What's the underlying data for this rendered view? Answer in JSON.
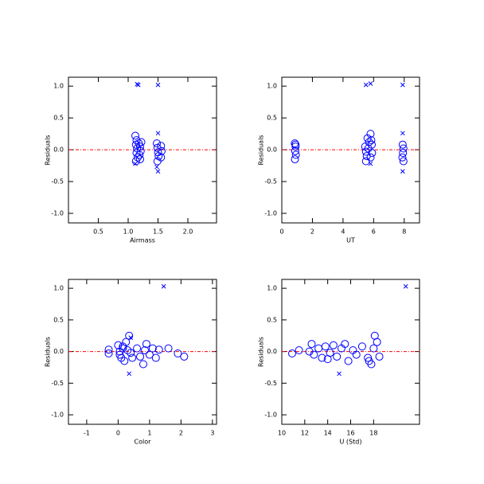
{
  "chart_data": [
    {
      "type": "scatter",
      "xlabel": "Airmass",
      "ylabel": "Residuals",
      "xlim": [
        0,
        2.48
      ],
      "ylim": [
        -1.15,
        1.14
      ],
      "xticks": [
        0.5,
        {
          "value": 1,
          "label": "1.0"
        },
        1.5,
        {
          "value": 2,
          "label": "2.0"
        }
      ],
      "yticks": [
        {
          "value": 1,
          "label": "1.0"
        },
        0.5,
        {
          "value": 0,
          "label": "0.0"
        },
        -0.5,
        {
          "value": -1,
          "label": "-1.0"
        }
      ],
      "hline": 0,
      "hline_color": "#ff0000",
      "series": [
        {
          "marker": "circle",
          "color": "#0000ff",
          "x": [
            1.12,
            1.14,
            1.13,
            1.15,
            1.14,
            1.16,
            1.13,
            1.18,
            1.2,
            1.21,
            1.19,
            1.22,
            1.2,
            1.48,
            1.49,
            1.5,
            1.51,
            1.49,
            1.55,
            1.56,
            1.55
          ],
          "y": [
            0.22,
            0.15,
            0.08,
            0.02,
            -0.05,
            -0.12,
            -0.18,
            0.1,
            0.05,
            -0.02,
            -0.08,
            0.12,
            -0.15,
            0.1,
            0.03,
            -0.04,
            -0.1,
            -0.18,
            0.06,
            -0.02,
            -0.12
          ]
        },
        {
          "marker": "x",
          "color": "#0000ff",
          "x": [
            1.15,
            1.17,
            1.5,
            1.5,
            1.5,
            1.48,
            1.12
          ],
          "y": [
            1.03,
            1.02,
            1.02,
            0.26,
            -0.34,
            -0.27,
            -0.22
          ]
        }
      ]
    },
    {
      "type": "scatter",
      "xlabel": "UT",
      "ylabel": "Residuals",
      "xlim": [
        0,
        9
      ],
      "ylim": [
        -1.15,
        1.14
      ],
      "xticks": [
        0,
        2,
        4,
        6,
        8
      ],
      "yticks": [
        {
          "value": 1,
          "label": "1.0"
        },
        0.5,
        {
          "value": 0,
          "label": "0.0"
        },
        -0.5,
        {
          "value": -1,
          "label": "-1.0"
        }
      ],
      "hline": 0,
      "hline_color": "#ff0000",
      "series": [
        {
          "marker": "circle",
          "color": "#0000ff",
          "x": [
            0.85,
            0.9,
            0.88,
            0.92,
            0.86,
            0.9,
            5.45,
            5.5,
            5.55,
            5.6,
            5.5,
            5.65,
            5.7,
            5.8,
            5.85,
            5.9,
            5.8,
            5.88,
            7.9,
            7.95,
            7.92,
            7.88,
            7.95
          ],
          "y": [
            0.1,
            0.05,
            -0.02,
            -0.08,
            -0.15,
            0.08,
            0.05,
            -0.03,
            -0.1,
            0.18,
            -0.18,
            0.02,
            0.12,
            0.25,
            0.15,
            -0.05,
            -0.12,
            0.08,
            0.08,
            0.02,
            -0.05,
            -0.12,
            -0.18
          ]
        },
        {
          "marker": "x",
          "color": "#0000ff",
          "x": [
            5.5,
            5.8,
            7.9,
            7.9,
            7.9,
            5.8
          ],
          "y": [
            1.02,
            1.04,
            1.02,
            0.26,
            -0.34,
            -0.22
          ]
        }
      ]
    },
    {
      "type": "scatter",
      "xlabel": "Color",
      "ylabel": "Residuals",
      "xlim": [
        -1.58,
        3.13
      ],
      "ylim": [
        -1.15,
        1.14
      ],
      "xticks": [
        -1,
        0,
        1,
        2,
        3
      ],
      "yticks": [
        {
          "value": 1,
          "label": "1.0"
        },
        0.5,
        {
          "value": 0,
          "label": "0.0"
        },
        -0.5,
        {
          "value": -1,
          "label": "-1.0"
        }
      ],
      "hline": 0,
      "hline_color": "#ff0000",
      "series": [
        {
          "marker": "circle",
          "color": "#0000ff",
          "x": [
            -0.3,
            -0.3,
            0,
            0.05,
            0.1,
            0.15,
            0.2,
            0.25,
            0.3,
            0.05,
            0.15,
            0.35,
            0.4,
            0.45,
            0.6,
            0.7,
            0.8,
            0.85,
            0.9,
            1.0,
            1.1,
            1.2,
            1.3,
            1.6,
            1.9,
            2.1
          ],
          "y": [
            0.03,
            -0.03,
            0.1,
            0.0,
            -0.1,
            0.05,
            -0.15,
            0.15,
            0.02,
            -0.05,
            0.08,
            0.25,
            -0.02,
            -0.1,
            0.05,
            -0.08,
            -0.2,
            0.02,
            0.12,
            -0.05,
            0.05,
            -0.1,
            0.03,
            0.05,
            -0.03,
            -0.08
          ]
        },
        {
          "marker": "x",
          "color": "#0000ff",
          "x": [
            1.45,
            0.35,
            0.4
          ],
          "y": [
            1.03,
            -0.35,
            0.22
          ]
        }
      ]
    },
    {
      "type": "scatter",
      "xlabel": "U (Std)",
      "ylabel": "Residuals",
      "xlim": [
        10,
        22
      ],
      "ylim": [
        -1.15,
        1.14
      ],
      "xticks": [
        10,
        12,
        14,
        16,
        18
      ],
      "yticks": [
        {
          "value": 1,
          "label": "1.0"
        },
        0.5,
        {
          "value": 0,
          "label": "0.0"
        },
        -0.5,
        {
          "value": -1,
          "label": "-1.0"
        }
      ],
      "hline": 0,
      "hline_color": "#ff0000",
      "series": [
        {
          "marker": "circle",
          "color": "#0000ff",
          "x": [
            10.9,
            11.5,
            12.6,
            12.8,
            13.2,
            13.5,
            13.8,
            14.2,
            14.5,
            14.8,
            15.2,
            15.5,
            15.8,
            16.2,
            16.5,
            17.0,
            17.5,
            17.8,
            18.1,
            18.3,
            18.5,
            18.0,
            17.6,
            12.4,
            14.0
          ],
          "y": [
            -0.03,
            0.02,
            0.12,
            -0.05,
            0.05,
            -0.1,
            0.08,
            -0.02,
            0.1,
            -0.08,
            0.05,
            0.12,
            -0.15,
            0.02,
            -0.05,
            0.08,
            -0.1,
            -0.2,
            0.25,
            0.15,
            -0.08,
            0.05,
            -0.15,
            0.0,
            -0.12
          ]
        },
        {
          "marker": "x",
          "color": "#0000ff",
          "x": [
            20.8,
            15.0
          ],
          "y": [
            1.03,
            -0.35
          ]
        }
      ]
    }
  ]
}
